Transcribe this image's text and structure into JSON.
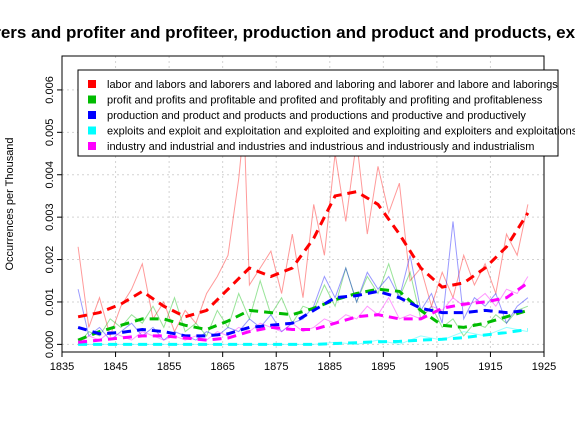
{
  "chart_data": {
    "type": "line",
    "title": "Laborers and profiter and profiteer, production and product and products, exploits",
    "xlabel": "",
    "ylabel": "Occurrences per Thousand",
    "xlim": [
      1835,
      1925
    ],
    "ylim": [
      0,
      0.0068
    ],
    "x_ticks": [
      "1835",
      "1845",
      "1855",
      "1865",
      "1875",
      "1885",
      "1895",
      "1905",
      "1915",
      "1925"
    ],
    "y_ticks": [
      "0.000",
      "0.001",
      "0.002",
      "0.003",
      "0.004",
      "0.005",
      "0.006"
    ],
    "grid": true,
    "legend_position": "top-right",
    "series": [
      {
        "name": "labor and labors and laborers and labored and laboring and laborer and labore and laborings",
        "color": "#ff0000",
        "smooth": {
          "x": [
            1838,
            1842,
            1846,
            1850,
            1854,
            1858,
            1862,
            1866,
            1870,
            1874,
            1878,
            1882,
            1886,
            1890,
            1894,
            1898,
            1902,
            1906,
            1910,
            1914,
            1918,
            1922
          ],
          "y": [
            0.00065,
            0.00075,
            0.00095,
            0.00125,
            0.0009,
            0.00065,
            0.0008,
            0.0013,
            0.0018,
            0.0016,
            0.0018,
            0.0025,
            0.0035,
            0.0036,
            0.0033,
            0.0026,
            0.0018,
            0.00135,
            0.00145,
            0.0018,
            0.0023,
            0.0031
          ]
        },
        "raw": {
          "x": [
            1838,
            1840,
            1842,
            1844,
            1846,
            1848,
            1850,
            1852,
            1854,
            1856,
            1858,
            1860,
            1862,
            1864,
            1866,
            1868,
            1869,
            1870,
            1872,
            1874,
            1876,
            1878,
            1880,
            1882,
            1884,
            1886,
            1888,
            1890,
            1892,
            1894,
            1896,
            1898,
            1900,
            1902,
            1904,
            1906,
            1908,
            1910,
            1912,
            1914,
            1916,
            1918,
            1920,
            1922
          ],
          "y": [
            0.0023,
            0.0004,
            0.0011,
            0.0002,
            0.0009,
            0.0013,
            0.0019,
            0.0006,
            0.001,
            0.0003,
            0.0008,
            0.0005,
            0.0012,
            0.0016,
            0.0021,
            0.0039,
            0.0052,
            0.0014,
            0.0018,
            0.0022,
            0.0012,
            0.0026,
            0.0011,
            0.0033,
            0.0021,
            0.0045,
            0.0029,
            0.0048,
            0.0026,
            0.0042,
            0.0031,
            0.0038,
            0.0015,
            0.0018,
            0.0009,
            0.0017,
            0.0011,
            0.0021,
            0.0014,
            0.0019,
            0.0012,
            0.0026,
            0.0021,
            0.0033
          ]
        }
      },
      {
        "name": "profit and profits and profitable and profited and profitably and profiting and profitableness",
        "color": "#00bb00",
        "smooth": {
          "x": [
            1838,
            1842,
            1846,
            1850,
            1854,
            1858,
            1862,
            1866,
            1870,
            1874,
            1878,
            1882,
            1886,
            1890,
            1894,
            1898,
            1902,
            1906,
            1910,
            1914,
            1918,
            1922
          ],
          "y": [
            0.0001,
            0.0003,
            0.00045,
            0.0006,
            0.0006,
            0.00045,
            0.00035,
            0.00055,
            0.0008,
            0.00075,
            0.0007,
            0.00085,
            0.00105,
            0.0012,
            0.0013,
            0.00125,
            0.0008,
            0.00045,
            0.0004,
            0.0005,
            0.00065,
            0.0008
          ]
        },
        "raw": {
          "x": [
            1838,
            1840,
            1842,
            1844,
            1846,
            1848,
            1850,
            1852,
            1854,
            1856,
            1858,
            1860,
            1862,
            1864,
            1866,
            1868,
            1870,
            1872,
            1874,
            1876,
            1878,
            1880,
            1882,
            1884,
            1886,
            1888,
            1890,
            1892,
            1894,
            1896,
            1898,
            1900,
            1902,
            1904,
            1906,
            1908,
            1910,
            1912,
            1914,
            1916,
            1918,
            1920,
            1922
          ],
          "y": [
            0.0,
            0.0003,
            0.0002,
            0.0006,
            0.0004,
            0.0007,
            0.0005,
            0.0009,
            0.0004,
            0.0011,
            0.0003,
            0.0005,
            0.0002,
            0.0008,
            0.0004,
            0.0012,
            0.0006,
            0.0015,
            0.0007,
            0.0011,
            0.0005,
            0.0009,
            0.0008,
            0.0014,
            0.0009,
            0.0018,
            0.001,
            0.0016,
            0.0012,
            0.0019,
            0.0011,
            0.0017,
            0.0006,
            0.0009,
            0.0004,
            0.0006,
            0.0002,
            0.0005,
            0.0004,
            0.0007,
            0.0005,
            0.0008,
            0.0009
          ]
        }
      },
      {
        "name": "production and product and products and productions and productive and productively",
        "color": "#0000ff",
        "smooth": {
          "x": [
            1838,
            1842,
            1846,
            1850,
            1854,
            1858,
            1862,
            1866,
            1870,
            1874,
            1878,
            1882,
            1886,
            1890,
            1894,
            1898,
            1902,
            1906,
            1910,
            1914,
            1918,
            1922
          ],
          "y": [
            0.0004,
            0.00025,
            0.00028,
            0.00035,
            0.0003,
            0.0002,
            0.0002,
            0.00025,
            0.0004,
            0.00045,
            0.0005,
            0.0008,
            0.0011,
            0.00115,
            0.00125,
            0.0011,
            0.00085,
            0.00075,
            0.00075,
            0.0008,
            0.00075,
            0.0008
          ]
        },
        "raw": {
          "x": [
            1838,
            1840,
            1842,
            1844,
            1846,
            1848,
            1850,
            1852,
            1854,
            1856,
            1858,
            1860,
            1862,
            1864,
            1866,
            1868,
            1870,
            1872,
            1874,
            1876,
            1878,
            1880,
            1882,
            1884,
            1886,
            1888,
            1890,
            1892,
            1894,
            1896,
            1898,
            1900,
            1902,
            1904,
            1906,
            1908,
            1910,
            1912,
            1914,
            1916,
            1918,
            1920,
            1922
          ],
          "y": [
            0.0013,
            0.0002,
            0.0004,
            0.0001,
            0.0003,
            0.0005,
            0.0002,
            0.0004,
            0.0001,
            0.0003,
            0.0002,
            0.0001,
            0.0003,
            0.0002,
            0.0004,
            0.0003,
            0.0006,
            0.0004,
            0.0007,
            0.0003,
            0.0005,
            0.0006,
            0.0009,
            0.0016,
            0.0011,
            0.0018,
            0.001,
            0.0017,
            0.0013,
            0.0016,
            0.0011,
            0.0021,
            0.0008,
            0.0012,
            0.0005,
            0.0029,
            0.0006,
            0.0011,
            0.0009,
            0.0012,
            0.0005,
            0.0009,
            0.0011
          ]
        }
      },
      {
        "name": "exploits and exploit and exploitation and exploited and exploiting and exploiters and exploitations",
        "color": "#00ffff",
        "smooth": {
          "x": [
            1838,
            1842,
            1846,
            1850,
            1854,
            1858,
            1862,
            1866,
            1870,
            1874,
            1878,
            1882,
            1886,
            1890,
            1894,
            1898,
            1902,
            1906,
            1910,
            1914,
            1918,
            1922
          ],
          "y": [
            0.0,
            0.0,
            0.0,
            0.0,
            0.0,
            0.0,
            0.0,
            0.0,
            0.0,
            0.0,
            0.0,
            0.0,
            2e-05,
            4e-05,
            6e-05,
            7e-05,
            0.0001,
            0.00012,
            0.00016,
            0.00022,
            0.00028,
            0.00035
          ]
        },
        "raw": {
          "x": [
            1838,
            1842,
            1846,
            1850,
            1854,
            1858,
            1862,
            1866,
            1870,
            1874,
            1878,
            1882,
            1886,
            1890,
            1894,
            1898,
            1902,
            1906,
            1910,
            1914,
            1918,
            1922
          ],
          "y": [
            0.0,
            0.0,
            0.0,
            0.0,
            0.0,
            0.0,
            0.0,
            0.0,
            0.0,
            0.0,
            0.0,
            0.0,
            5e-05,
            0.0,
            0.0001,
            0.0,
            0.0002,
            0.0001,
            0.0003,
            0.0002,
            0.0004,
            0.0003
          ]
        }
      },
      {
        "name": "industry and industrial and industries and industrious and industriously and industrialism",
        "color": "#ff00ff",
        "smooth": {
          "x": [
            1838,
            1842,
            1846,
            1850,
            1854,
            1858,
            1862,
            1866,
            1870,
            1874,
            1878,
            1882,
            1886,
            1890,
            1894,
            1898,
            1902,
            1906,
            1910,
            1914,
            1918,
            1922
          ],
          "y": [
            5e-05,
            0.0001,
            0.00015,
            0.0002,
            0.0002,
            0.00015,
            0.0001,
            0.00015,
            0.0003,
            0.0004,
            0.00035,
            0.00035,
            0.0005,
            0.00065,
            0.0007,
            0.0006,
            0.0006,
            0.00085,
            0.00095,
            0.001,
            0.0011,
            0.00145
          ]
        },
        "raw": {
          "x": [
            1838,
            1840,
            1842,
            1844,
            1846,
            1848,
            1850,
            1852,
            1854,
            1856,
            1858,
            1860,
            1862,
            1864,
            1866,
            1868,
            1870,
            1872,
            1874,
            1876,
            1878,
            1880,
            1882,
            1884,
            1886,
            1888,
            1890,
            1892,
            1894,
            1896,
            1898,
            1900,
            1902,
            1904,
            1906,
            1908,
            1910,
            1912,
            1914,
            1916,
            1918,
            1920,
            1922
          ],
          "y": [
            0.0,
            0.0002,
            0.0001,
            0.0003,
            0.0002,
            0.0001,
            0.0003,
            0.0002,
            0.0001,
            0.0002,
            0.0001,
            0.0002,
            0.0001,
            0.0003,
            0.0002,
            0.0004,
            0.0003,
            0.0005,
            0.0004,
            0.0003,
            0.0005,
            0.0003,
            0.0004,
            0.0006,
            0.0005,
            0.0007,
            0.0006,
            0.0009,
            0.0007,
            0.0011,
            0.0006,
            0.0007,
            0.0006,
            0.0009,
            0.0008,
            0.0011,
            0.0009,
            0.001,
            0.0012,
            0.0009,
            0.0013,
            0.0012,
            0.0016
          ]
        }
      }
    ]
  }
}
